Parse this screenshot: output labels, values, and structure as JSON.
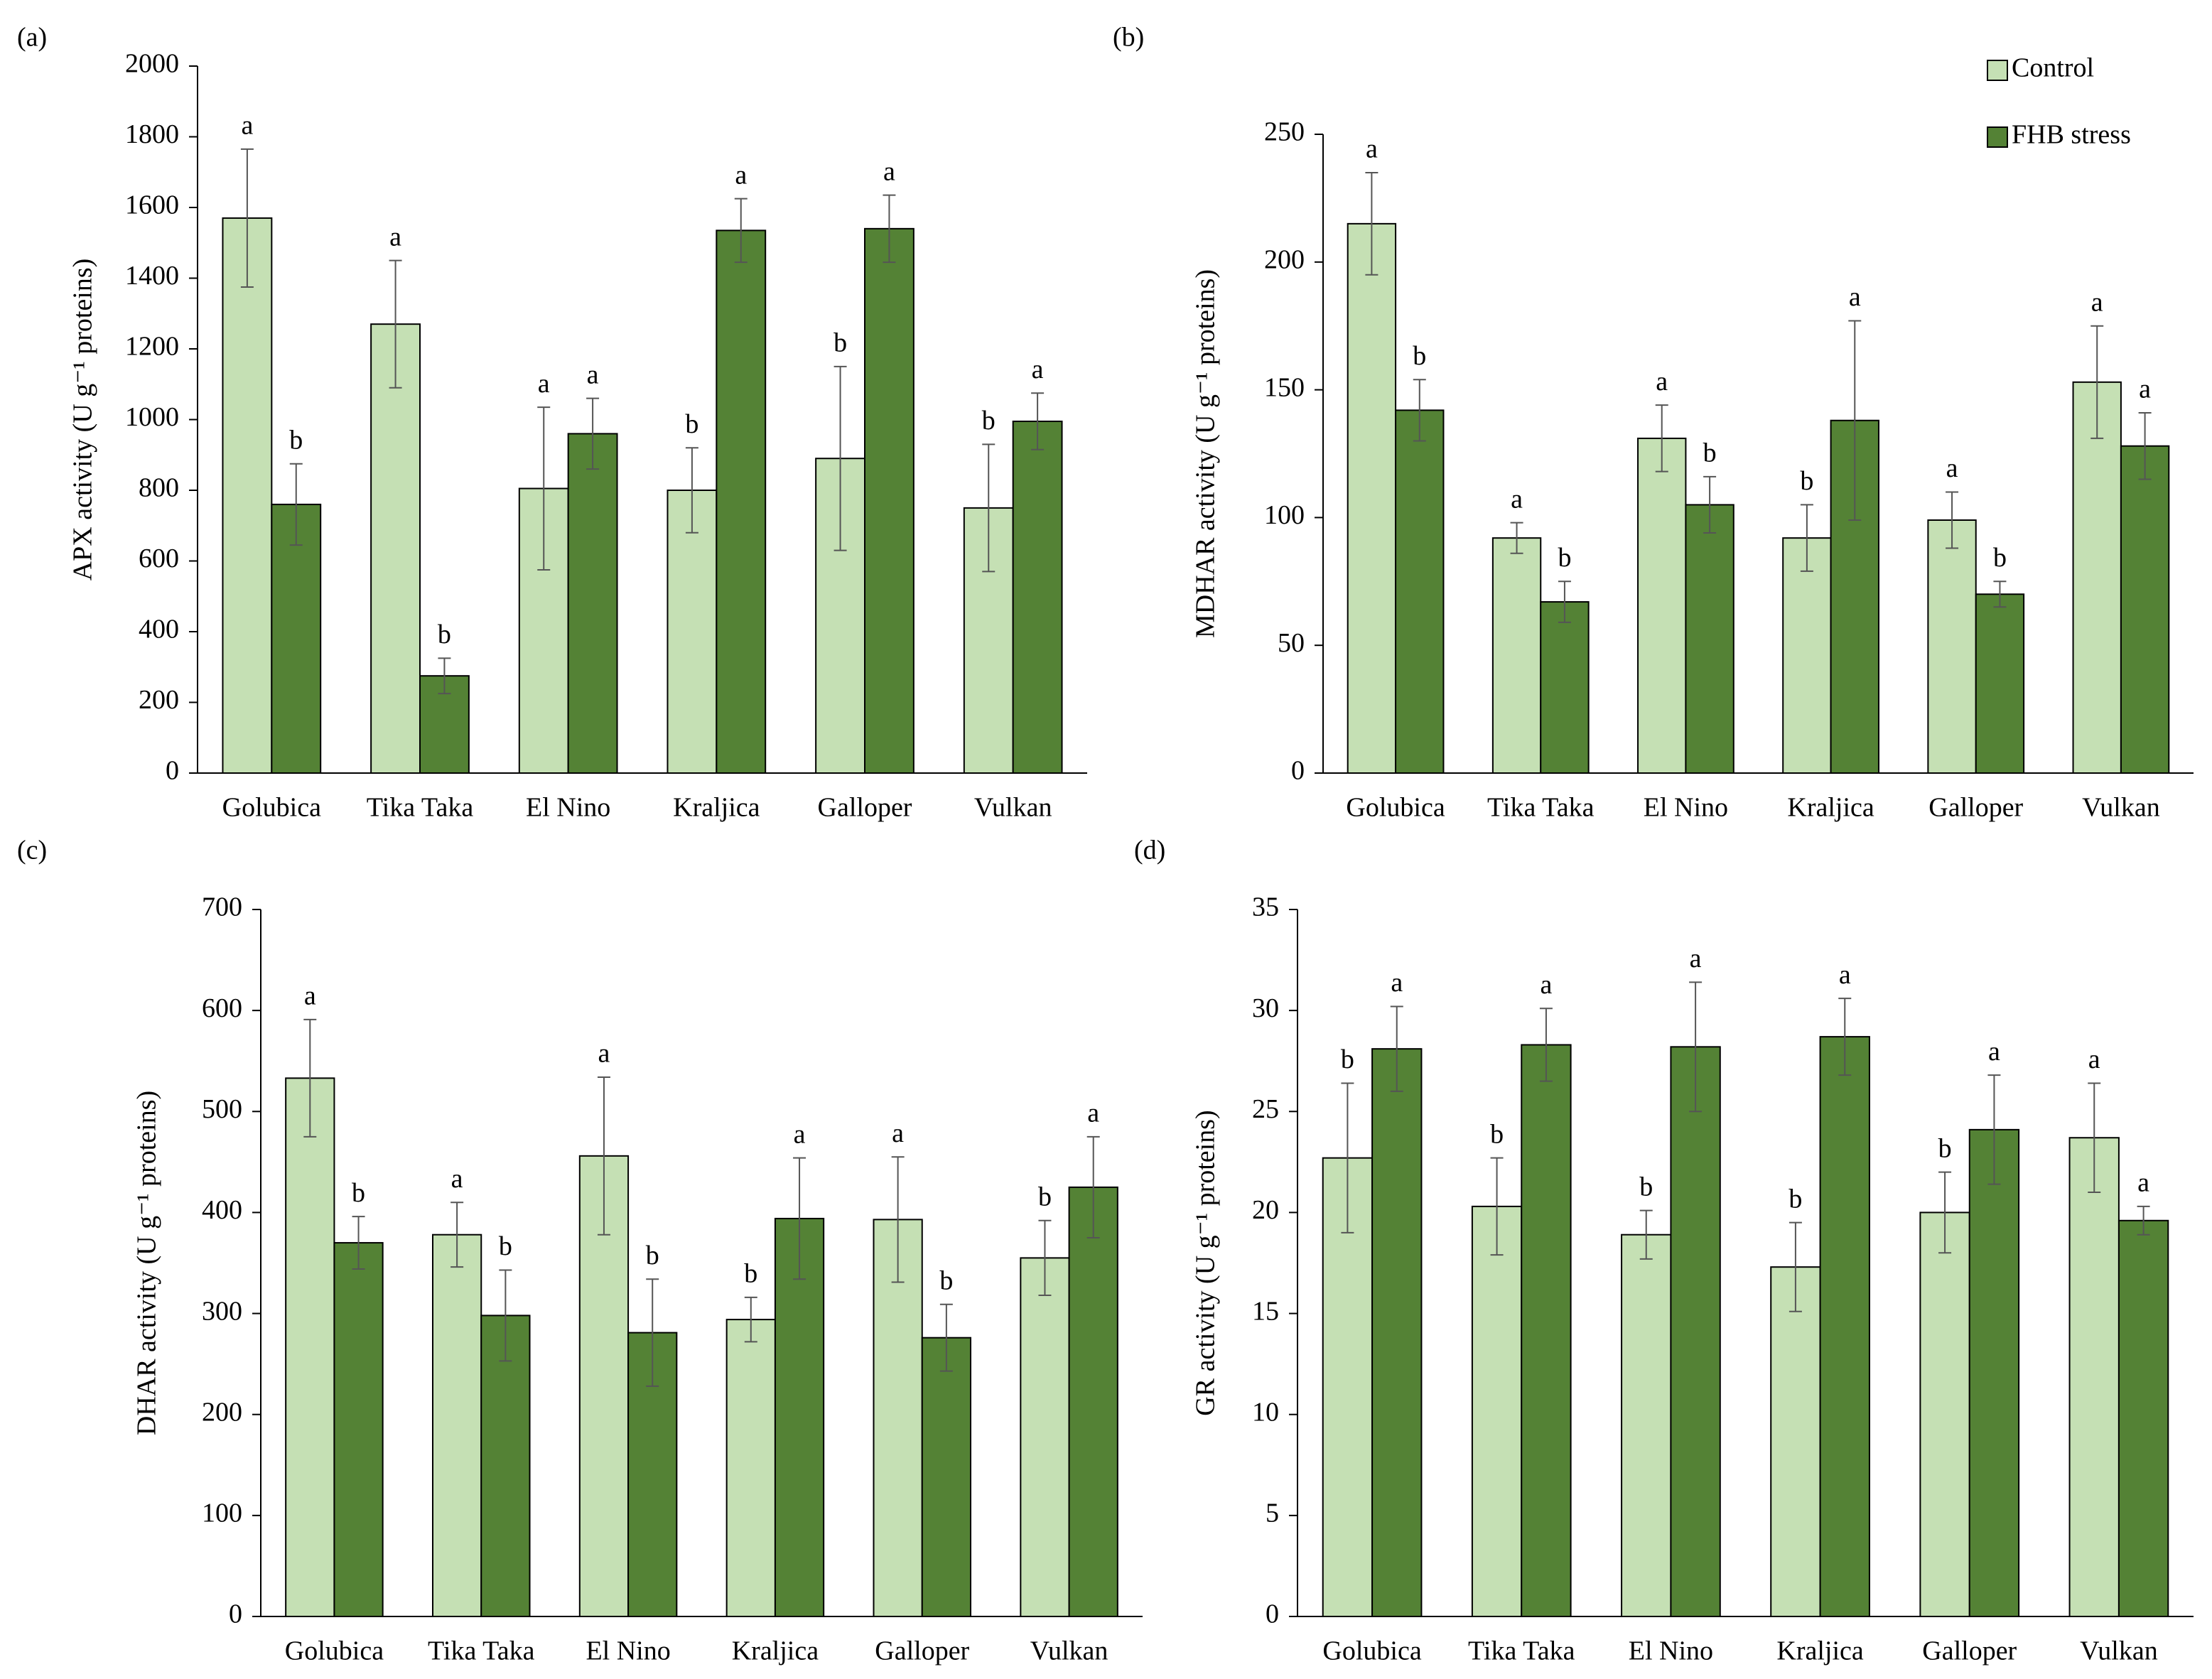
{
  "chart_data": [
    {
      "type": "bar",
      "panel": "(a)",
      "y_label": "APX activity (U g⁻¹ proteins)",
      "categories": [
        "Golubica",
        "Tika Taka",
        "El Nino",
        "Kraljica",
        "Galloper",
        "Vulkan"
      ],
      "series": [
        {
          "name": "Control",
          "color": "#c5e0b4",
          "values": [
            1570,
            1270,
            805,
            800,
            890,
            750
          ],
          "errors": [
            195,
            180,
            230,
            120,
            260,
            180
          ],
          "letters": [
            "a",
            "a",
            "a",
            "b",
            "b",
            "b"
          ]
        },
        {
          "name": "FHB stress",
          "color": "#548235",
          "values": [
            760,
            275,
            960,
            1535,
            1540,
            995
          ],
          "errors": [
            115,
            50,
            100,
            90,
            95,
            80
          ],
          "letters": [
            "b",
            "b",
            "a",
            "a",
            "a",
            "a"
          ]
        }
      ],
      "ylim": [
        0,
        2000
      ],
      "yticks": [
        0,
        200,
        400,
        600,
        800,
        1000,
        1200,
        1400,
        1600,
        1800,
        2000
      ]
    },
    {
      "type": "bar",
      "panel": "(b)",
      "y_label": "MDHAR activity (U g⁻¹ proteins)",
      "categories": [
        "Golubica",
        "Tika Taka",
        "El Nino",
        "Kraljica",
        "Galloper",
        "Vulkan"
      ],
      "series": [
        {
          "name": "Control",
          "color": "#c5e0b4",
          "values": [
            215,
            92,
            131,
            92,
            99,
            153
          ],
          "errors": [
            20,
            6,
            13,
            13,
            11,
            22
          ],
          "letters": [
            "a",
            "a",
            "a",
            "b",
            "a",
            "a"
          ]
        },
        {
          "name": "FHB stress",
          "color": "#548235",
          "values": [
            142,
            67,
            105,
            138,
            70,
            128
          ],
          "errors": [
            12,
            8,
            11,
            39,
            5,
            13
          ],
          "letters": [
            "b",
            "b",
            "b",
            "a",
            "b",
            "a"
          ]
        }
      ],
      "ylim": [
        0,
        250
      ],
      "yticks": [
        0,
        50,
        100,
        150,
        200,
        250
      ],
      "legend": "top-right"
    },
    {
      "type": "bar",
      "panel": "(c)",
      "y_label": "DHAR activity (U g⁻¹ proteins)",
      "categories": [
        "Golubica",
        "Tika Taka",
        "El Nino",
        "Kraljica",
        "Galloper",
        "Vulkan"
      ],
      "series": [
        {
          "name": "Control",
          "color": "#c5e0b4",
          "values": [
            533,
            378,
            456,
            294,
            393,
            355
          ],
          "errors": [
            58,
            32,
            78,
            22,
            62,
            37
          ],
          "letters": [
            "a",
            "a",
            "a",
            "b",
            "a",
            "b"
          ]
        },
        {
          "name": "FHB stress",
          "color": "#548235",
          "values": [
            370,
            298,
            281,
            394,
            276,
            425
          ],
          "errors": [
            26,
            45,
            53,
            60,
            33,
            50
          ],
          "letters": [
            "b",
            "b",
            "b",
            "a",
            "b",
            "a"
          ]
        }
      ],
      "ylim": [
        0,
        700
      ],
      "yticks": [
        0,
        100,
        200,
        300,
        400,
        500,
        600,
        700
      ]
    },
    {
      "type": "bar",
      "panel": "(d)",
      "y_label": "GR activity (U g⁻¹ proteins)",
      "categories": [
        "Golubica",
        "Tika Taka",
        "El Nino",
        "Kraljica",
        "Galloper",
        "Vulkan"
      ],
      "series": [
        {
          "name": "Control",
          "color": "#c5e0b4",
          "values": [
            22.7,
            20.3,
            18.9,
            17.3,
            20.0,
            23.7
          ],
          "errors": [
            3.7,
            2.4,
            1.2,
            2.2,
            2.0,
            2.7
          ],
          "letters": [
            "b",
            "b",
            "b",
            "b",
            "b",
            "a"
          ]
        },
        {
          "name": "FHB stress",
          "color": "#548235",
          "values": [
            28.1,
            28.3,
            28.2,
            28.7,
            24.1,
            19.6
          ],
          "errors": [
            2.1,
            1.8,
            3.2,
            1.9,
            2.7,
            0.7
          ],
          "letters": [
            "a",
            "a",
            "a",
            "a",
            "a",
            "a"
          ]
        }
      ],
      "ylim": [
        0,
        35
      ],
      "yticks": [
        0,
        5,
        10,
        15,
        20,
        25,
        30,
        35
      ]
    }
  ]
}
